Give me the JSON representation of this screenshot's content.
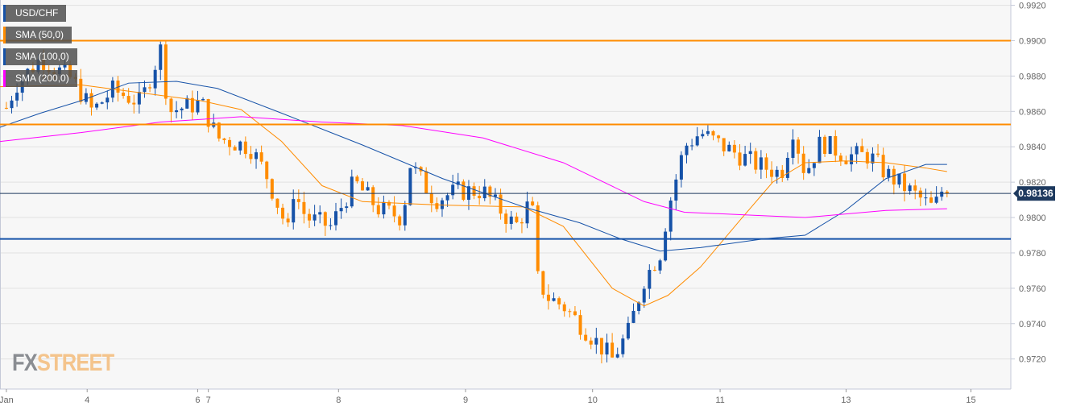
{
  "chart_data": {
    "type": "candlestick",
    "title": "USD/CHF",
    "legend": [
      {
        "label": "USD/CHF",
        "color": "#1652a8"
      },
      {
        "label": "SMA (50,0)",
        "color": "#ff8c00"
      },
      {
        "label": "SMA (100,0)",
        "color": "#1652a8"
      },
      {
        "label": "SMA (200,0)",
        "color": "#ff00ff"
      }
    ],
    "legend_placement": "top-left",
    "ylim": [
      0.9703,
      0.9923
    ],
    "y_ticks": [
      "0.9920",
      "0.9900",
      "0.9880",
      "0.9860",
      "0.9840",
      "0.9820",
      "0.9800",
      "0.9780",
      "0.9760",
      "0.9740",
      "0.9720"
    ],
    "x_unit": "hours (trading time index)",
    "xlim": [
      -1.2,
      189
    ],
    "x_ticks": [
      {
        "label": "Jan",
        "h": 0
      },
      {
        "label": "4",
        "h": 15.2
      },
      {
        "label": "6",
        "h": 36
      },
      {
        "label": "7",
        "h": 38
      },
      {
        "label": "8",
        "h": 62.5
      },
      {
        "label": "9",
        "h": 86.4
      },
      {
        "label": "10",
        "h": 110.3
      },
      {
        "label": "11",
        "h": 134.3
      },
      {
        "label": "13",
        "h": 158
      },
      {
        "label": "15",
        "h": 181.5
      }
    ],
    "close_path": [
      [
        0,
        0.9862
      ],
      [
        1.8,
        0.9875
      ],
      [
        6.4,
        0.989
      ],
      [
        12.4,
        0.9878
      ],
      [
        16.2,
        0.986
      ],
      [
        20,
        0.9872
      ],
      [
        25.3,
        0.9865
      ],
      [
        29,
        0.9895
      ],
      [
        30.6,
        0.986
      ],
      [
        36.7,
        0.9865
      ],
      [
        39.7,
        0.9845
      ],
      [
        45.8,
        0.984
      ],
      [
        48.8,
        0.9825
      ],
      [
        53.3,
        0.979
      ],
      [
        54,
        0.9815
      ],
      [
        56.4,
        0.98
      ],
      [
        61,
        0.9795
      ],
      [
        65.5,
        0.982
      ],
      [
        70,
        0.9805
      ],
      [
        74.5,
        0.98
      ],
      [
        76,
        0.983
      ],
      [
        80.6,
        0.981
      ],
      [
        85,
        0.9815
      ],
      [
        89.7,
        0.9815
      ],
      [
        95.8,
        0.9795
      ],
      [
        98.8,
        0.981
      ],
      [
        100,
        0.9765
      ],
      [
        101.8,
        0.9755
      ],
      [
        104.8,
        0.975
      ],
      [
        107.9,
        0.974
      ],
      [
        114,
        0.972
      ],
      [
        117,
        0.9735
      ],
      [
        120,
        0.9765
      ],
      [
        123,
        0.978
      ],
      [
        124.5,
        0.9805
      ],
      [
        127.6,
        0.984
      ],
      [
        130.6,
        0.9848
      ],
      [
        135,
        0.984
      ],
      [
        141.2,
        0.983
      ],
      [
        145.8,
        0.9825
      ],
      [
        148,
        0.985
      ],
      [
        150.3,
        0.9825
      ],
      [
        153.3,
        0.9843
      ],
      [
        157.9,
        0.9835
      ],
      [
        162.4,
        0.9835
      ],
      [
        165.5,
        0.9825
      ],
      [
        170,
        0.9815
      ],
      [
        174.5,
        0.9805
      ],
      [
        176,
        0.9815
      ],
      [
        177,
        0.98136
      ]
    ],
    "series": [
      {
        "name": "SMA (50,0)",
        "color": "#ff8c00",
        "points": [
          [
            -1.2,
            0.9874
          ],
          [
            14,
            0.9875
          ],
          [
            36.7,
            0.9866
          ],
          [
            44.2,
            0.9861
          ],
          [
            51.8,
            0.9843
          ],
          [
            59.4,
            0.9818
          ],
          [
            67,
            0.9809
          ],
          [
            82.1,
            0.9807
          ],
          [
            97.3,
            0.9806
          ],
          [
            104.8,
            0.9795
          ],
          [
            114,
            0.976
          ],
          [
            120,
            0.975
          ],
          [
            124.5,
            0.9756
          ],
          [
            130.6,
            0.9772
          ],
          [
            138.2,
            0.9799
          ],
          [
            144.2,
            0.982
          ],
          [
            150.3,
            0.9831
          ],
          [
            157.9,
            0.9832
          ],
          [
            165.5,
            0.9831
          ],
          [
            173,
            0.9828
          ],
          [
            177,
            0.9826
          ]
        ]
      },
      {
        "name": "SMA (100,0)",
        "color": "#1652a8",
        "points": [
          [
            -1.2,
            0.9851
          ],
          [
            6.4,
            0.9859
          ],
          [
            14,
            0.9866
          ],
          [
            23,
            0.9876
          ],
          [
            32,
            0.9877
          ],
          [
            39.7,
            0.9873
          ],
          [
            51.8,
            0.9859
          ],
          [
            67,
            0.9841
          ],
          [
            82.1,
            0.9822
          ],
          [
            97.3,
            0.9806
          ],
          [
            107.9,
            0.9797
          ],
          [
            115.5,
            0.9788
          ],
          [
            123,
            0.9781
          ],
          [
            130.6,
            0.9783
          ],
          [
            142.7,
            0.9788
          ],
          [
            150.3,
            0.979
          ],
          [
            157.9,
            0.9804
          ],
          [
            165.5,
            0.9822
          ],
          [
            173,
            0.983
          ],
          [
            177,
            0.983
          ]
        ]
      },
      {
        "name": "SMA (200,0)",
        "color": "#ff00ff",
        "points": [
          [
            -1.2,
            0.9843
          ],
          [
            14,
            0.9848
          ],
          [
            29,
            0.9854
          ],
          [
            44.2,
            0.9857
          ],
          [
            59.4,
            0.9854
          ],
          [
            74.5,
            0.9852
          ],
          [
            89.7,
            0.9845
          ],
          [
            104.8,
            0.9831
          ],
          [
            120,
            0.9809
          ],
          [
            127.6,
            0.9803
          ],
          [
            142.7,
            0.9801
          ],
          [
            150.3,
            0.98
          ],
          [
            165.5,
            0.9804
          ],
          [
            177,
            0.9805
          ]
        ]
      }
    ],
    "horizontal_levels": [
      {
        "value": 0.99,
        "color": "#ff8c00"
      },
      {
        "value": 0.98526,
        "color": "#ff8c00"
      },
      {
        "value": 0.97879,
        "color": "#1652a8"
      }
    ],
    "current_price": {
      "value": 0.98136,
      "label": "0.98136",
      "color": "#1e3a5f"
    },
    "up_color": "#1652a8",
    "down_color": "#ff8c00",
    "grid": true
  },
  "logo": {
    "fx": "FX",
    "street": "STREET"
  }
}
